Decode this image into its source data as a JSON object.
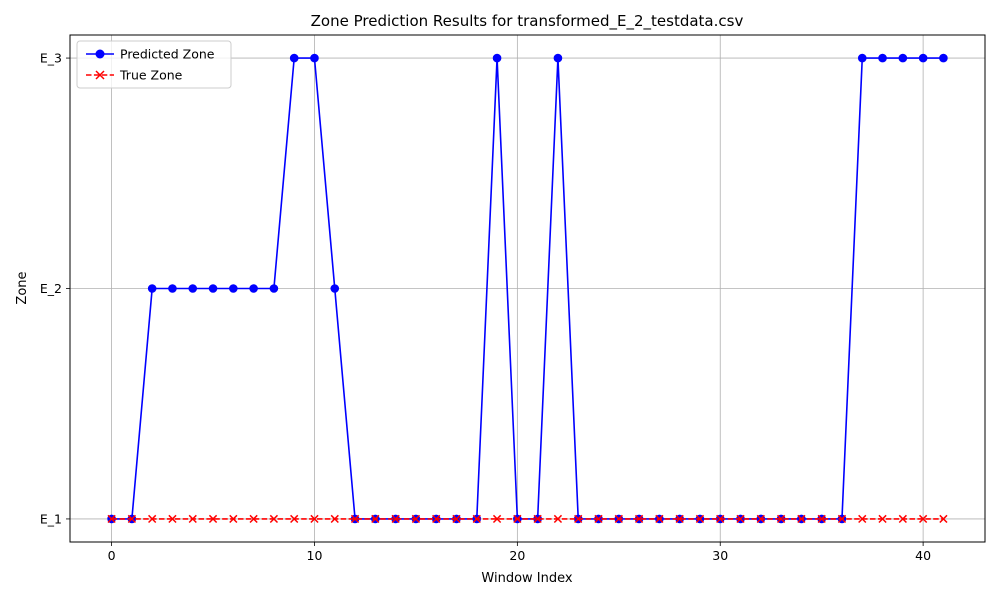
{
  "chart_data": {
    "type": "line",
    "title": "Zone Prediction Results for transformed_E_2_testdata.csv",
    "xlabel": "Window Index",
    "ylabel": "Zone",
    "xlim": [
      -2.05,
      43.05
    ],
    "xticks": [
      0,
      10,
      20,
      30,
      40
    ],
    "y_categories": [
      "E_1",
      "E_2",
      "E_3"
    ],
    "grid": true,
    "legend_position": "top-left",
    "x": [
      0,
      1,
      2,
      3,
      4,
      5,
      6,
      7,
      8,
      9,
      10,
      11,
      12,
      13,
      14,
      15,
      16,
      17,
      18,
      19,
      20,
      21,
      22,
      23,
      24,
      25,
      26,
      27,
      28,
      29,
      30,
      31,
      32,
      33,
      34,
      35,
      36,
      37,
      38,
      39,
      40,
      41
    ],
    "series": [
      {
        "name": "Predicted Zone",
        "color": "#0000ff",
        "marker": "circle",
        "linestyle": "solid",
        "values": [
          "E_1",
          "E_1",
          "E_2",
          "E_2",
          "E_2",
          "E_2",
          "E_2",
          "E_2",
          "E_2",
          "E_3",
          "E_3",
          "E_2",
          "E_1",
          "E_1",
          "E_1",
          "E_1",
          "E_1",
          "E_1",
          "E_1",
          "E_3",
          "E_1",
          "E_1",
          "E_3",
          "E_1",
          "E_1",
          "E_1",
          "E_1",
          "E_1",
          "E_1",
          "E_1",
          "E_1",
          "E_1",
          "E_1",
          "E_1",
          "E_1",
          "E_1",
          "E_1",
          "E_3",
          "E_3",
          "E_3",
          "E_3",
          "E_3"
        ]
      },
      {
        "name": "True Zone",
        "color": "#ff0000",
        "marker": "x",
        "linestyle": "dashed",
        "values": [
          "E_1",
          "E_1",
          "E_1",
          "E_1",
          "E_1",
          "E_1",
          "E_1",
          "E_1",
          "E_1",
          "E_1",
          "E_1",
          "E_1",
          "E_1",
          "E_1",
          "E_1",
          "E_1",
          "E_1",
          "E_1",
          "E_1",
          "E_1",
          "E_1",
          "E_1",
          "E_1",
          "E_1",
          "E_1",
          "E_1",
          "E_1",
          "E_1",
          "E_1",
          "E_1",
          "E_1",
          "E_1",
          "E_1",
          "E_1",
          "E_1",
          "E_1",
          "E_1",
          "E_1",
          "E_1",
          "E_1",
          "E_1",
          "E_1"
        ]
      }
    ]
  }
}
